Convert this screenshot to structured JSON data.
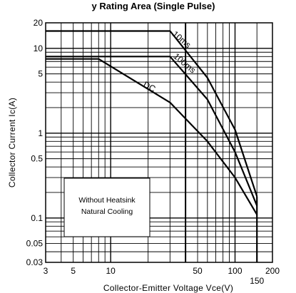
{
  "chart_data": {
    "type": "line",
    "title": "y Rating Area (Single Pulse)",
    "xlabel": "Collector-Emitter Voltage Vce(V)",
    "ylabel": "Collector Current Ic(A)",
    "x_scale": "log",
    "y_scale": "log",
    "xlim": [
      3,
      200
    ],
    "ylim": [
      0.03,
      20
    ],
    "x_ticks": [
      3,
      5,
      10,
      50,
      100,
      200
    ],
    "x_extra_tick": 150,
    "y_ticks": [
      0.03,
      0.05,
      0.1,
      0.5,
      1,
      5,
      10,
      20
    ],
    "grid": true,
    "series": [
      {
        "name": "10ms",
        "x": [
          3,
          30,
          60,
          100,
          150
        ],
        "y": [
          16,
          16,
          4.5,
          1.1,
          0.18
        ]
      },
      {
        "name": "100ms",
        "x": [
          3,
          30,
          60,
          100,
          150
        ],
        "y": [
          8,
          8,
          2.5,
          0.6,
          0.14
        ]
      },
      {
        "name": "DC",
        "x": [
          3,
          8,
          30,
          60,
          100,
          150
        ],
        "y": [
          7.5,
          7.5,
          2.3,
          0.8,
          0.3,
          0.11
        ]
      }
    ],
    "annotation_lines": [
      "Without Heatsink",
      "Natural Cooling"
    ]
  }
}
